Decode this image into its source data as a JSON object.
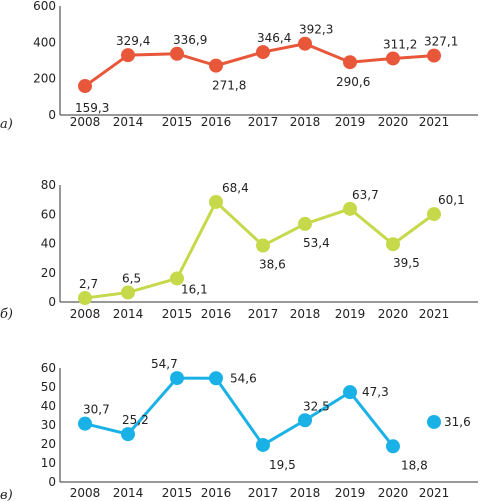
{
  "chart_data": [
    {
      "type": "line",
      "panel_label": "а)",
      "categories": [
        "2008",
        "2014",
        "2015",
        "2016",
        "2017",
        "2018",
        "2019",
        "2020",
        "2021"
      ],
      "series": [
        {
          "values": [
            159.3,
            329.4,
            336.9,
            271.8,
            346.4,
            392.3,
            290.6,
            311.2,
            327.1
          ],
          "labels": [
            "159,3",
            "329,4",
            "336,9",
            "271,8",
            "346,4",
            "392,3",
            "290,6",
            "311,2",
            "327,1"
          ],
          "color": "#e8573a"
        }
      ],
      "ylim": [
        0,
        600
      ],
      "yticks": [
        "0",
        "200",
        "400",
        "600"
      ],
      "grid": false,
      "legend": "none"
    },
    {
      "type": "line",
      "panel_label": "б)",
      "categories": [
        "2008",
        "2014",
        "2015",
        "2016",
        "2017",
        "2018",
        "2019",
        "2020",
        "2021"
      ],
      "series": [
        {
          "values": [
            2.7,
            6.5,
            16.1,
            68.4,
            38.6,
            53.4,
            63.7,
            39.5,
            60.1
          ],
          "labels": [
            "2,7",
            "6,5",
            "16,1",
            "68,4",
            "38,6",
            "53,4",
            "63,7",
            "39,5",
            "60,1"
          ],
          "color": "#c5d94a"
        }
      ],
      "ylim": [
        0,
        80
      ],
      "yticks": [
        "0",
        "20",
        "40",
        "60",
        "80"
      ],
      "grid": false,
      "legend": "none"
    },
    {
      "type": "line",
      "panel_label": "в)",
      "categories": [
        "2008",
        "2014",
        "2015",
        "2016",
        "2017",
        "2018",
        "2019",
        "2020",
        "2021"
      ],
      "series": [
        {
          "values": [
            30.7,
            25.2,
            54.7,
            54.6,
            19.5,
            32.5,
            47.3,
            18.8,
            31.6
          ],
          "labels": [
            "30,7",
            "25,2",
            "54,7",
            "54,6",
            "19,5",
            "32,5",
            "47,3",
            "18,8",
            "31,6"
          ],
          "color": "#1ab1e6",
          "connected": [
            true,
            true,
            true,
            true,
            true,
            true,
            true,
            false
          ]
        }
      ],
      "ylim": [
        0,
        60
      ],
      "yticks": [
        "0",
        "10",
        "20",
        "30",
        "40",
        "50",
        "60"
      ],
      "grid": false,
      "legend": "none"
    }
  ]
}
